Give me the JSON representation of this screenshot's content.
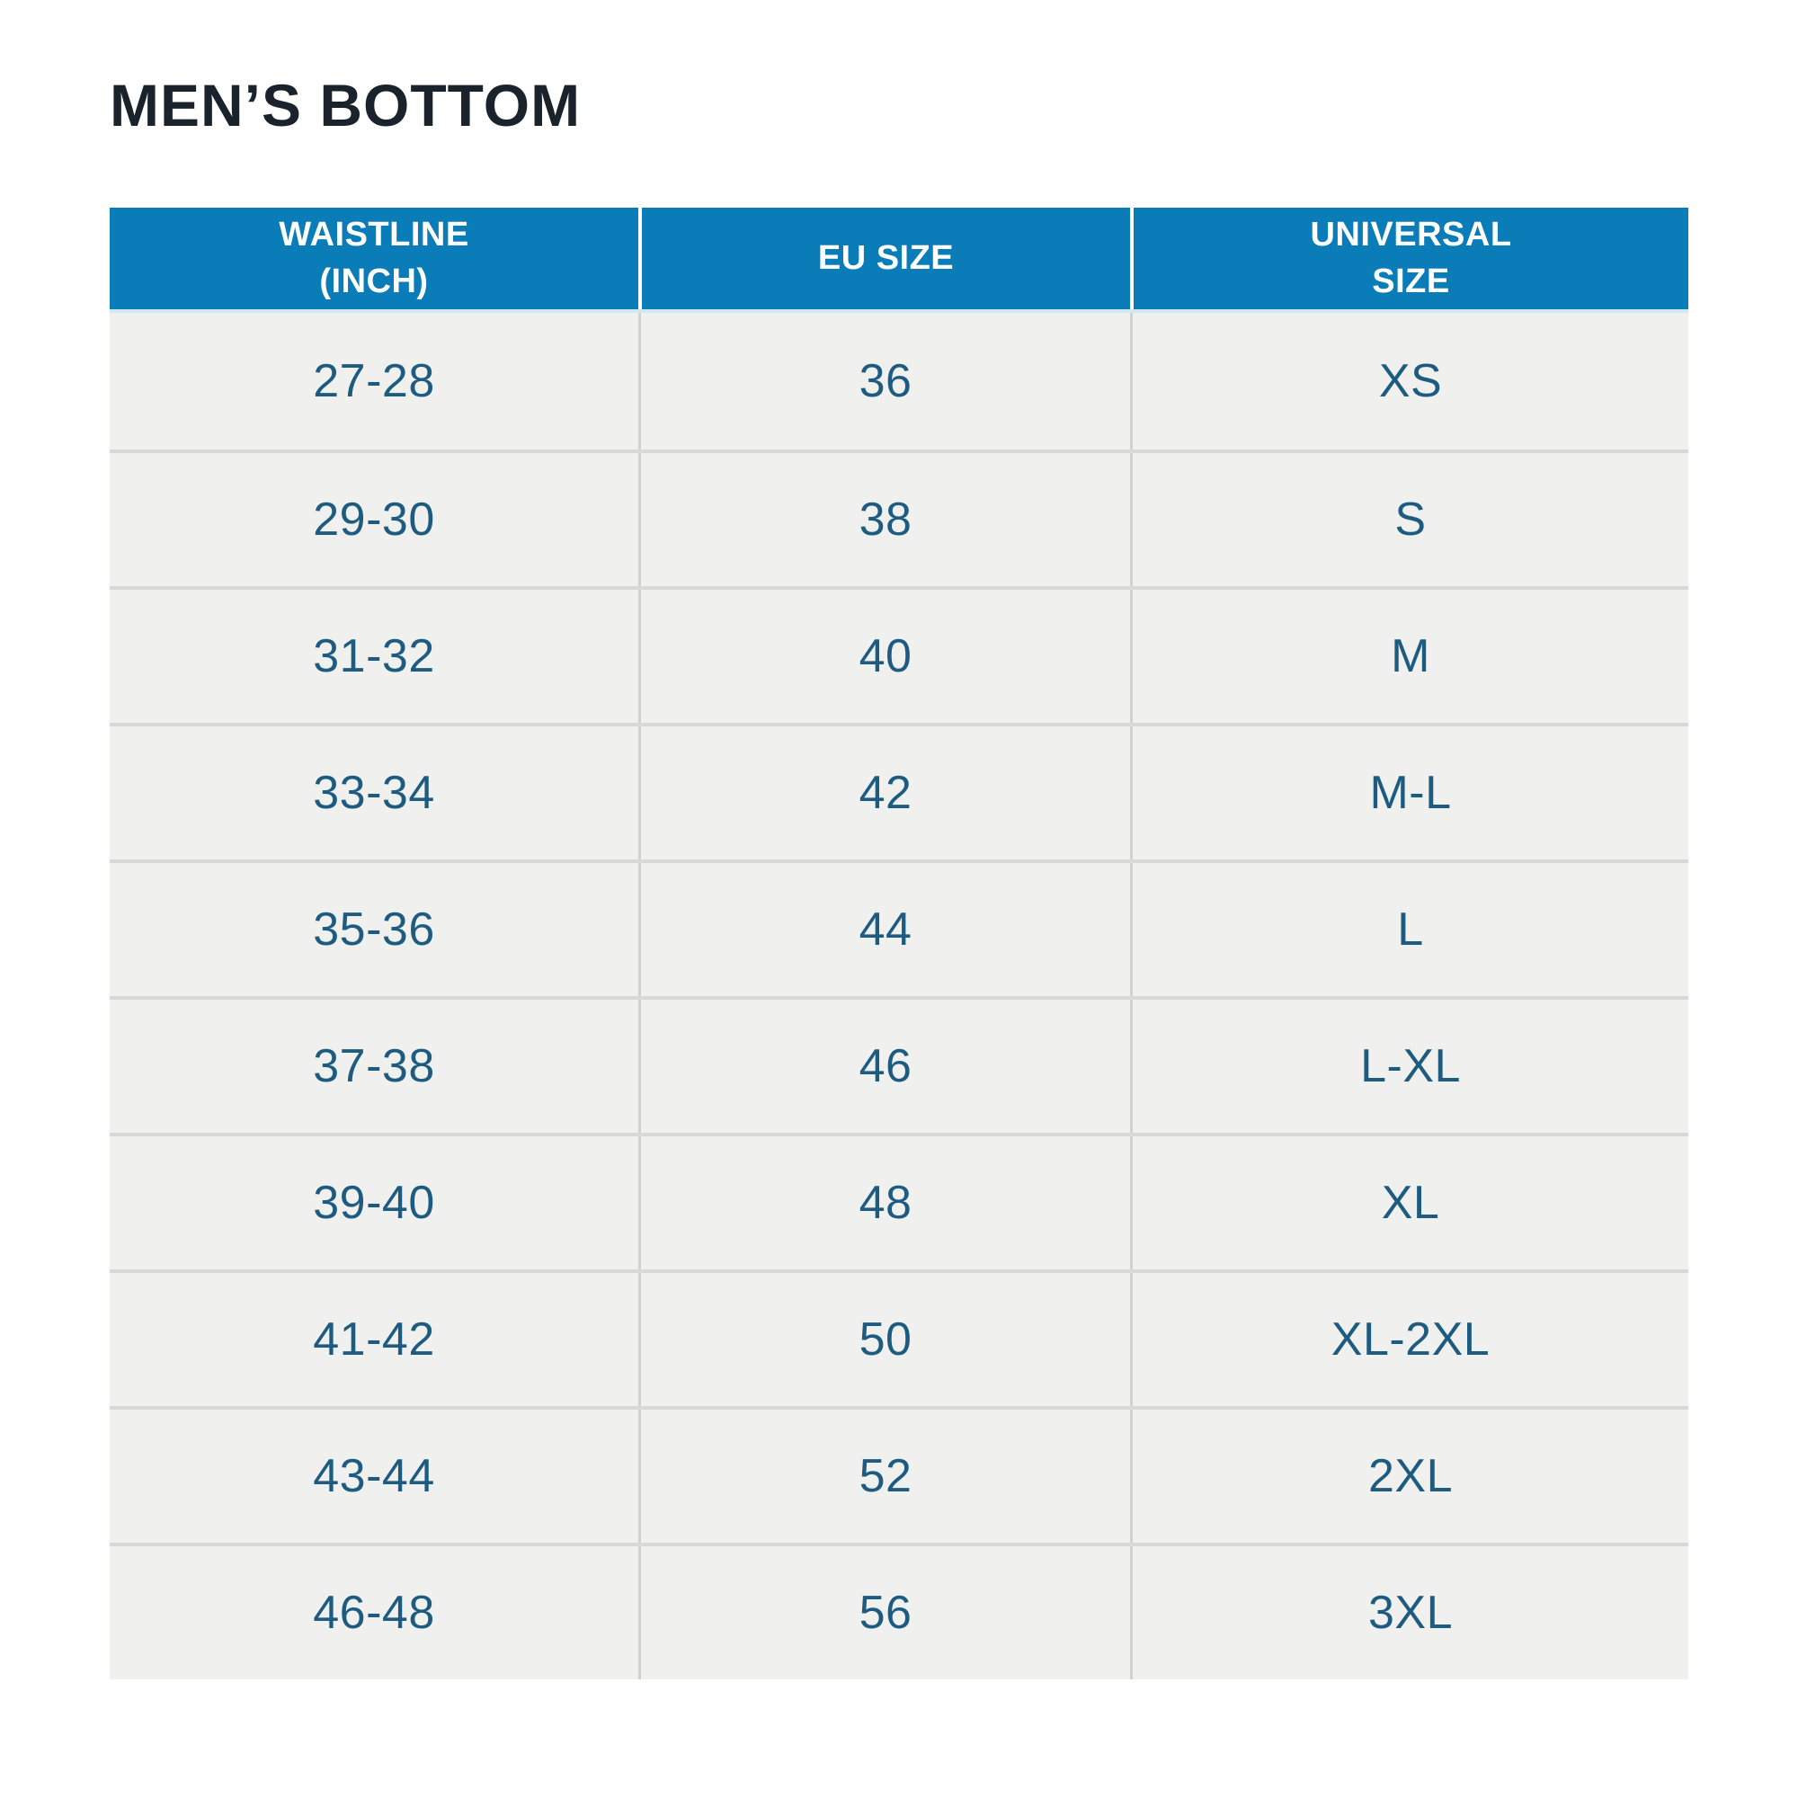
{
  "page_title": "MEN’S BOTTOM",
  "colors": {
    "header_bg": "#0a7cb8",
    "header_text": "#ffffff",
    "body_row_bg": "#f0f0ef",
    "body_text": "#1d5c80",
    "title_text": "#1a232b",
    "row_divider": "#d9d9d9",
    "column_divider": "#d2d2d2",
    "header_underline": "#cfe9f3"
  },
  "header_display": {
    "col1": "WAISTLINE\n(INCH)",
    "col2": "EU SIZE",
    "col3": "UNIVERSAL\nSIZE"
  },
  "chart_data": {
    "type": "table",
    "title": "MEN’S BOTTOM",
    "columns": [
      "WAISTLINE (INCH)",
      "EU SIZE",
      "UNIVERSAL SIZE"
    ],
    "rows": [
      [
        "27-28",
        "36",
        "XS"
      ],
      [
        "29-30",
        "38",
        "S"
      ],
      [
        "31-32",
        "40",
        "M"
      ],
      [
        "33-34",
        "42",
        "M-L"
      ],
      [
        "35-36",
        "44",
        "L"
      ],
      [
        "37-38",
        "46",
        "L-XL"
      ],
      [
        "39-40",
        "48",
        "XL"
      ],
      [
        "41-42",
        "50",
        "XL-2XL"
      ],
      [
        "43-44",
        "52",
        "2XL"
      ],
      [
        "46-48",
        "56",
        "3XL"
      ]
    ]
  }
}
